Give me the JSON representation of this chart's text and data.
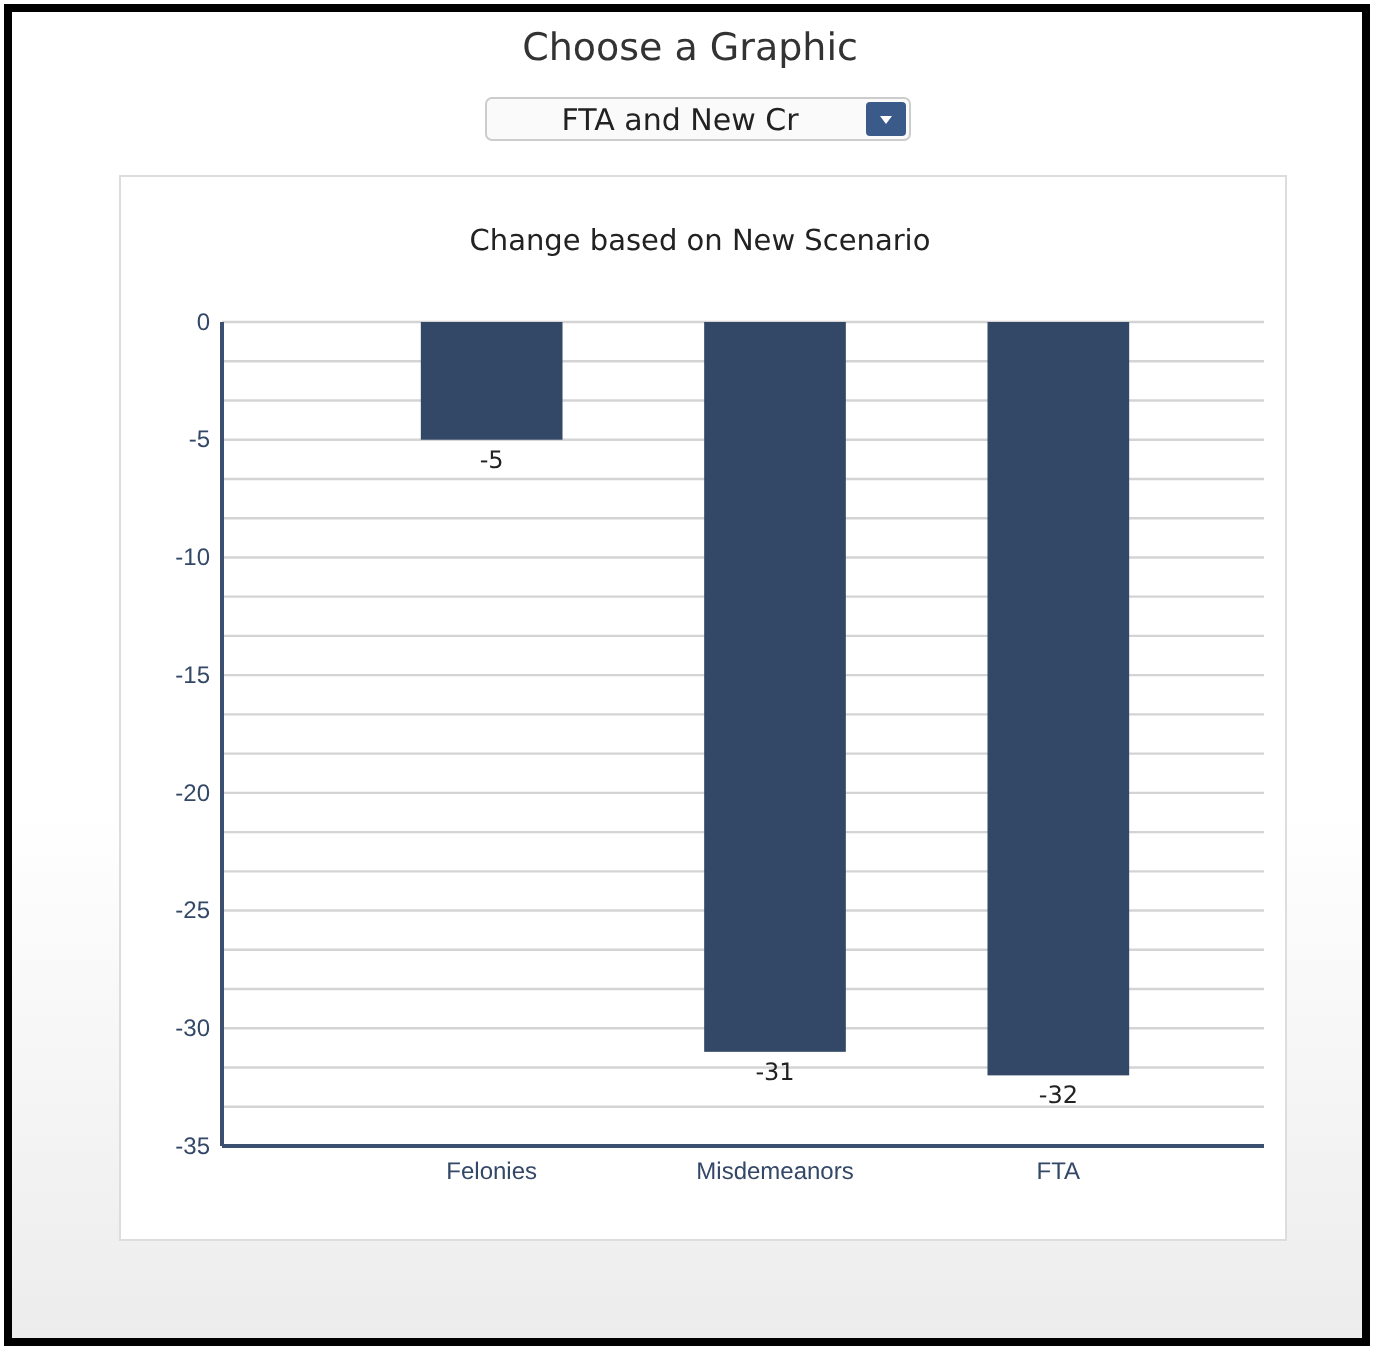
{
  "chart_data": {
    "type": "bar",
    "title": "Change based on New Scenario",
    "annotations": [
      "Choose a Graphic",
      "FTA and New Cr"
    ],
    "categories": [
      "Felonies",
      "Misdemeanors",
      "FTA"
    ],
    "values": [
      -5,
      -31,
      -32
    ],
    "color": "#334766",
    "data_labels": true,
    "ylim": [
      -35,
      0
    ],
    "yticks": [
      0,
      {
        "value": -1.667,
        "label": null
      },
      {
        "value": -3.333,
        "label": null
      },
      -5,
      {
        "value": -6.667,
        "label": null
      },
      {
        "value": -8.333,
        "label": null
      },
      -10,
      {
        "value": -11.667,
        "label": null
      },
      {
        "value": -13.333,
        "label": null
      },
      -15,
      {
        "value": -16.667,
        "label": null
      },
      {
        "value": -18.333,
        "label": null
      },
      -20,
      {
        "value": -21.667,
        "label": null
      },
      {
        "value": -23.333,
        "label": null
      },
      -25,
      {
        "value": -26.667,
        "label": null
      },
      {
        "value": -28.333,
        "label": null
      },
      -30,
      {
        "value": -31.667,
        "label": null
      },
      {
        "value": -33.333,
        "label": null
      },
      -35
    ],
    "grid": "y"
  }
}
